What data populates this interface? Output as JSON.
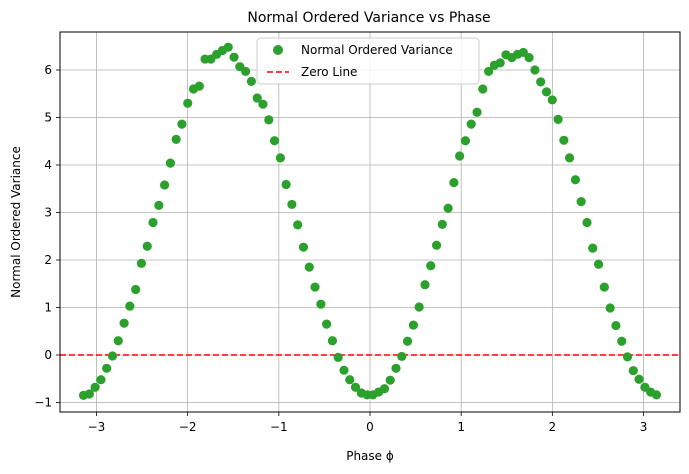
{
  "chart_data": {
    "type": "scatter",
    "title": "Normal Ordered Variance vs Phase",
    "xlabel": "Phase ϕ",
    "ylabel": "Normal Ordered Variance",
    "xlim": [
      -3.4,
      3.4
    ],
    "ylim": [
      -1.2,
      6.8
    ],
    "grid": true,
    "legend_placement": "top-center",
    "x_ticks": [
      -3,
      -2,
      -1,
      0,
      1,
      2,
      3
    ],
    "x_tick_labels": [
      "−3",
      "−2",
      "−1",
      "0",
      "1",
      "2",
      "3"
    ],
    "y_ticks": [
      -1,
      0,
      1,
      2,
      3,
      4,
      5,
      6
    ],
    "y_tick_labels": [
      "−1",
      "0",
      "1",
      "2",
      "3",
      "4",
      "5",
      "6"
    ],
    "series": [
      {
        "name": "Normal Ordered Variance",
        "kind": "scatter",
        "color": "#2ca02c",
        "x": [
          -3.142,
          -3.078,
          -3.015,
          -2.951,
          -2.888,
          -2.824,
          -2.761,
          -2.697,
          -2.634,
          -2.57,
          -2.507,
          -2.443,
          -2.38,
          -2.316,
          -2.253,
          -2.189,
          -2.126,
          -2.063,
          -1.999,
          -1.936,
          -1.872,
          -1.809,
          -1.745,
          -1.682,
          -1.618,
          -1.555,
          -1.491,
          -1.428,
          -1.364,
          -1.301,
          -1.237,
          -1.174,
          -1.11,
          -1.047,
          -0.983,
          -0.92,
          -0.857,
          -0.793,
          -0.73,
          -0.666,
          -0.603,
          -0.539,
          -0.476,
          -0.412,
          -0.349,
          -0.285,
          -0.222,
          -0.159,
          -0.095,
          -0.032,
          0.032,
          0.095,
          0.159,
          0.222,
          0.285,
          0.349,
          0.412,
          0.476,
          0.539,
          0.603,
          0.666,
          0.73,
          0.793,
          0.857,
          0.92,
          0.983,
          1.047,
          1.11,
          1.174,
          1.237,
          1.301,
          1.364,
          1.428,
          1.491,
          1.555,
          1.618,
          1.682,
          1.745,
          1.809,
          1.872,
          1.936,
          1.999,
          2.063,
          2.126,
          2.189,
          2.253,
          2.316,
          2.38,
          2.443,
          2.507,
          2.57,
          2.634,
          2.697,
          2.761,
          2.824,
          2.888,
          2.951,
          3.015,
          3.078,
          3.142
        ],
        "y": [
          -0.85,
          -0.82,
          -0.68,
          -0.52,
          -0.28,
          -0.02,
          0.3,
          0.67,
          1.03,
          1.38,
          1.93,
          2.29,
          2.79,
          3.15,
          3.58,
          4.04,
          4.54,
          4.86,
          5.3,
          5.6,
          5.66,
          6.23,
          6.23,
          6.33,
          6.41,
          6.48,
          6.27,
          6.07,
          5.97,
          5.76,
          5.41,
          5.28,
          4.95,
          4.51,
          4.15,
          3.59,
          3.17,
          2.74,
          2.27,
          1.85,
          1.43,
          1.07,
          0.65,
          0.3,
          -0.05,
          -0.32,
          -0.52,
          -0.68,
          -0.8,
          -0.84,
          -0.84,
          -0.78,
          -0.71,
          -0.53,
          -0.28,
          -0.03,
          0.29,
          0.63,
          1.01,
          1.48,
          1.88,
          2.31,
          2.75,
          3.09,
          3.63,
          4.19,
          4.51,
          4.86,
          5.11,
          5.6,
          5.97,
          6.1,
          6.15,
          6.32,
          6.26,
          6.33,
          6.37,
          6.26,
          6.0,
          5.75,
          5.54,
          5.37,
          4.96,
          4.52,
          4.15,
          3.69,
          3.23,
          2.79,
          2.25,
          1.91,
          1.43,
          0.99,
          0.62,
          0.29,
          -0.04,
          -0.33,
          -0.51,
          -0.68,
          -0.78,
          -0.84
        ]
      },
      {
        "name": "Zero Line",
        "kind": "hline",
        "y": 0,
        "color": "#ff0000",
        "style": "dashed"
      }
    ]
  }
}
